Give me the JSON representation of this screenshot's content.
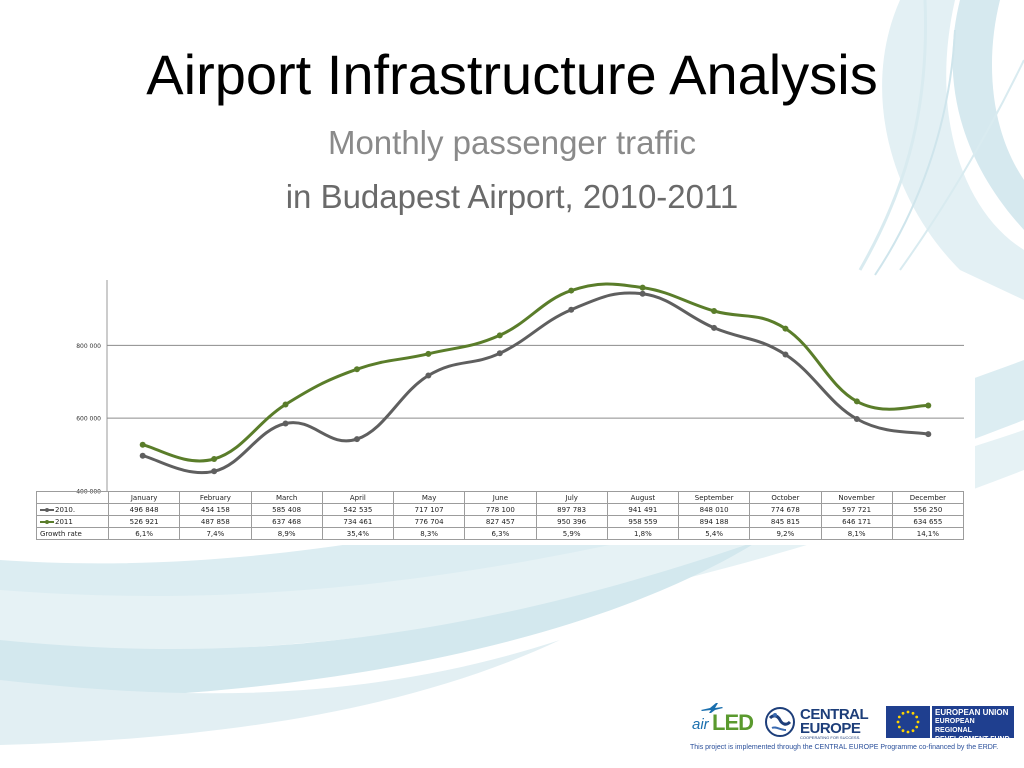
{
  "slide": {
    "title": "Airport Infrastructure Analysis",
    "subtitle_line1": "Monthly passenger traffic",
    "subtitle_line2": "in Budapest Airport, 2010-2011"
  },
  "chart_data": {
    "type": "line",
    "title": "",
    "xlabel": "",
    "ylabel": "",
    "categories": [
      "January",
      "February",
      "March",
      "April",
      "May",
      "June",
      "July",
      "August",
      "September",
      "October",
      "November",
      "December"
    ],
    "ylim": [
      400000,
      1000000
    ],
    "yticks": [
      400000,
      600000,
      800000
    ],
    "ytick_labels": [
      "400 000",
      "600 000",
      "800 000"
    ],
    "grid": true,
    "series": [
      {
        "name": "2010.",
        "color": "#5f5f5f",
        "values": [
          496848,
          454158,
          585408,
          542535,
          717107,
          778100,
          897783,
          941491,
          848010,
          774678,
          597721,
          556250
        ],
        "labels": [
          "496 848",
          "454 158",
          "585 408",
          "542 535",
          "717 107",
          "778 100",
          "897 783",
          "941 491",
          "848 010",
          "774 678",
          "597 721",
          "556 250"
        ]
      },
      {
        "name": "2011",
        "color": "#5a7d2a",
        "values": [
          526921,
          487858,
          637468,
          734461,
          776704,
          827457,
          950396,
          958559,
          894188,
          845815,
          646171,
          634655
        ],
        "labels": [
          "526 921",
          "487 858",
          "637 468",
          "734 461",
          "776 704",
          "827 457",
          "950 396",
          "958 559",
          "894 188",
          "845 815",
          "646 171",
          "634 655"
        ]
      }
    ],
    "growth": {
      "label": "Growth rate",
      "values": [
        "6,1%",
        "7,4%",
        "8,9%",
        "35,4%",
        "8,3%",
        "6,3%",
        "5,9%",
        "1,8%",
        "5,4%",
        "9,2%",
        "8,1%",
        "14,1%"
      ]
    }
  },
  "logos": {
    "airled_air": "air",
    "airled_led": "LED",
    "ce_line1": "CENTRAL",
    "ce_line2": "EUROPE",
    "ce_tagline": "COOPERATING FOR SUCCESS.",
    "eu_line1": "EUROPEAN UNION",
    "eu_line2": "EUROPEAN REGIONAL",
    "eu_line3": "DEVELOPMENT FUND"
  },
  "footnote": "This project is implemented through the CENTRAL EUROPE Programme co-financed by the ERDF.",
  "colors": {
    "swoosh": "#cfe7ee",
    "swoosh_dark": "#a9d3de"
  }
}
